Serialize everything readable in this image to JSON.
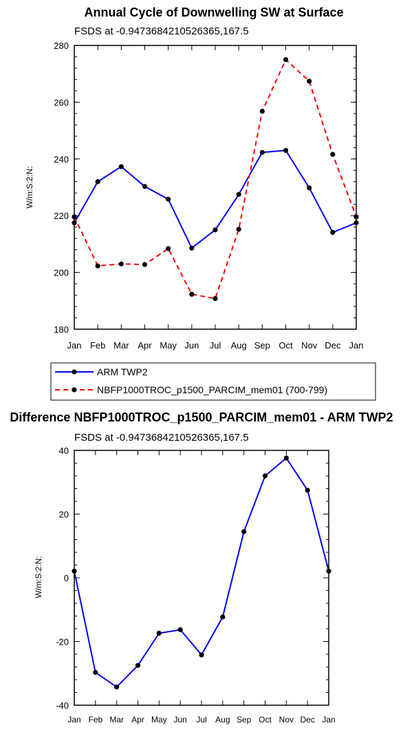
{
  "chart_data": [
    {
      "type": "line",
      "title": "Annual Cycle of Downwelling SW at Surface",
      "subtitle": "FSDS at -0.9473684210526365,167.5",
      "ylabel": "W/m:S:2:N:",
      "ylim": [
        180,
        280
      ],
      "yticks": [
        180,
        200,
        220,
        240,
        260,
        280
      ],
      "categories": [
        "Jan",
        "Feb",
        "Mar",
        "Apr",
        "May",
        "Jun",
        "Jul",
        "Aug",
        "Sep",
        "Oct",
        "Nov",
        "Dec",
        "Jan"
      ],
      "series": [
        {
          "name": "ARM TWP2",
          "color": "#0000ff",
          "dash": "solid",
          "values": [
            217.5,
            232,
            237.3,
            230.3,
            225.8,
            208.6,
            215,
            227.5,
            242.3,
            243,
            229.8,
            214.1,
            217.5
          ]
        },
        {
          "name": "NBFP1000TROC_p1500_PARCIM_mem01 (700-799)",
          "color": "#ff0000",
          "dash": "dashed",
          "values": [
            219.6,
            202.3,
            203,
            202.8,
            208.4,
            192.3,
            190.8,
            215.2,
            256.8,
            275,
            267.4,
            241.6,
            219.6
          ]
        }
      ],
      "legend_position": "below"
    },
    {
      "type": "line",
      "title": "Difference NBFP1000TROC_p1500_PARCIM_mem01 - ARM TWP2",
      "subtitle": "FSDS at -0.9473684210526365,167.5",
      "ylabel": "W/m:S:2:N:",
      "ylim": [
        -40,
        40
      ],
      "yticks": [
        -40,
        -20,
        0,
        20,
        40
      ],
      "categories": [
        "Jan",
        "Feb",
        "Mar",
        "Apr",
        "May",
        "Jun",
        "Jul",
        "Aug",
        "Sep",
        "Oct",
        "Nov",
        "Dec",
        "Jan"
      ],
      "series": [
        {
          "color": "#0000ff",
          "dash": "solid",
          "values": [
            2.1,
            -29.7,
            -34.3,
            -27.5,
            -17.4,
            -16.3,
            -24.2,
            -12.3,
            14.5,
            32,
            37.6,
            27.5,
            2.1
          ]
        }
      ]
    }
  ]
}
